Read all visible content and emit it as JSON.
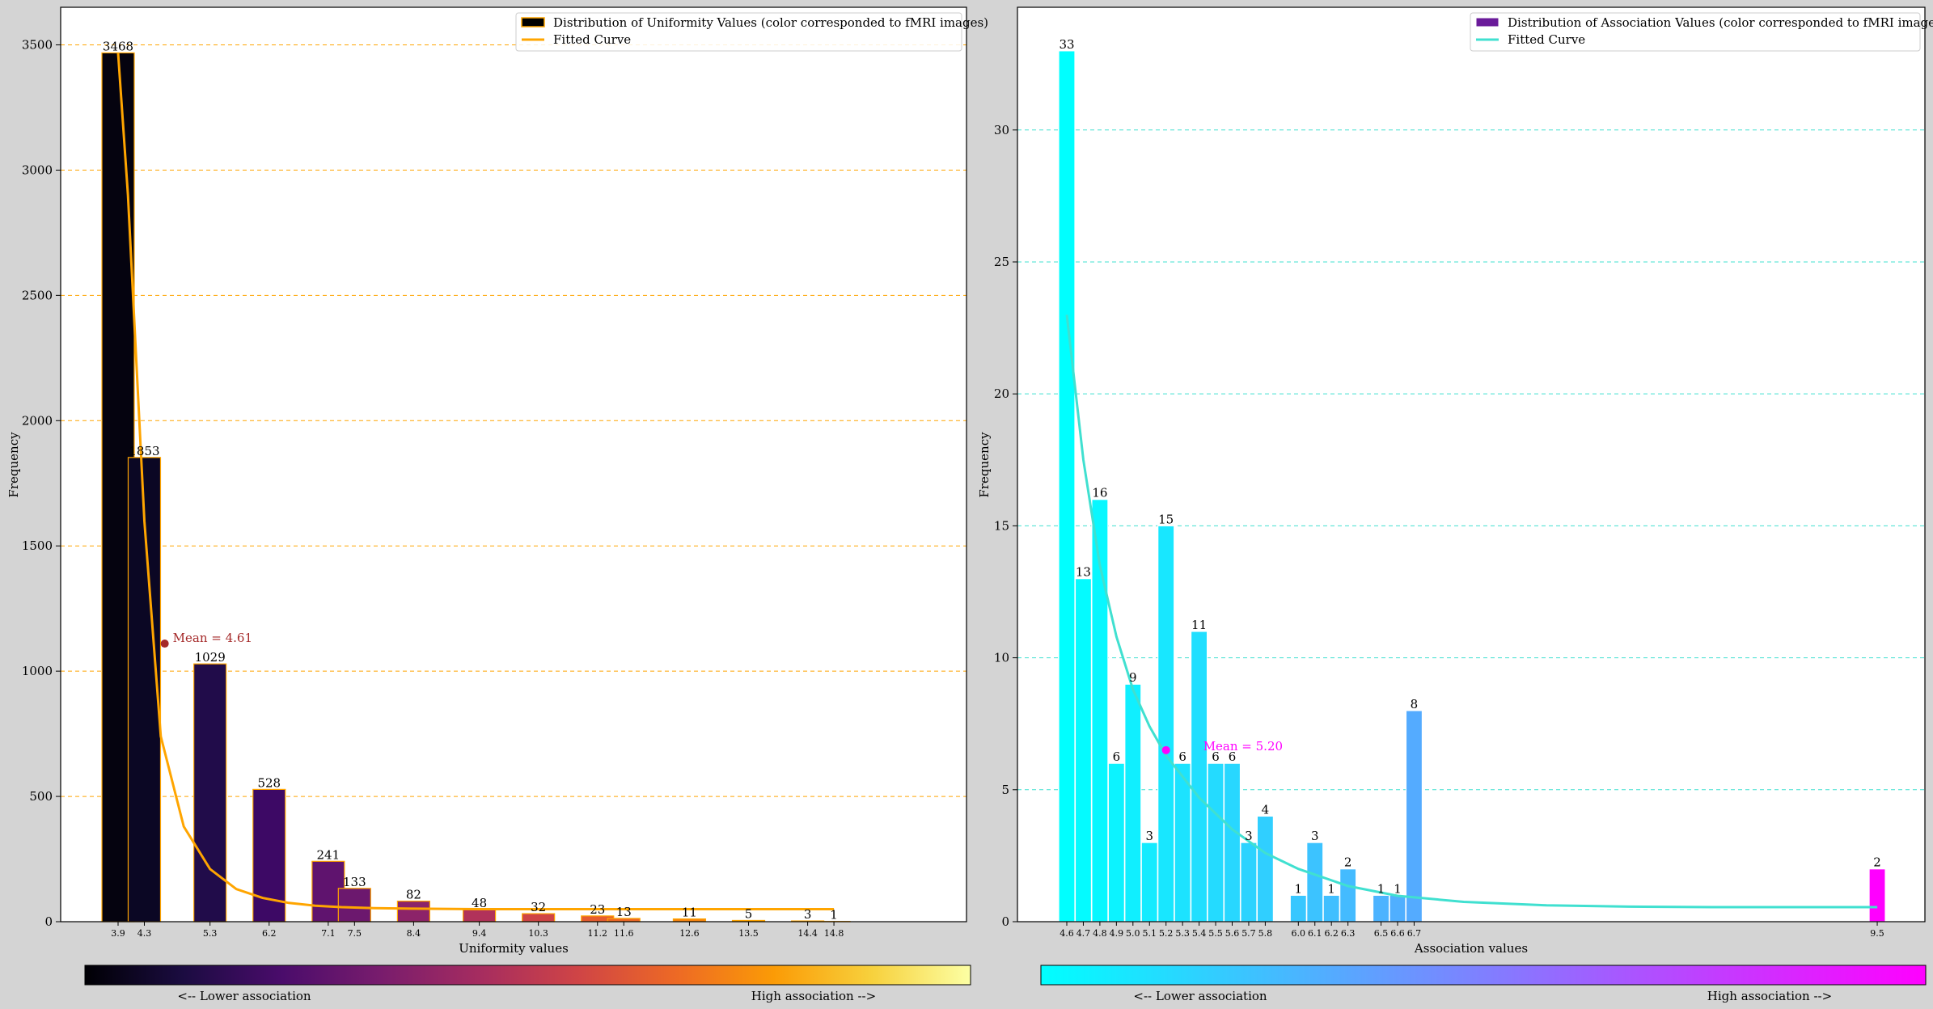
{
  "chart_data": [
    {
      "type": "bar",
      "xlabel": "Uniformity values",
      "ylabel": "Frequency",
      "ylim": [
        0,
        3650
      ],
      "yticks": [
        0,
        500,
        1000,
        1500,
        2000,
        2500,
        3000,
        3500
      ],
      "grid": "y, dashed",
      "grid_color": "#ffa500",
      "legend_position": "top-right",
      "legend": {
        "bars": "Distribution of Uniformity Values (color corresponded to fMRI images)",
        "curve": "Fitted Curve"
      },
      "bar_edge_color": "#ffa500",
      "curve_color": "#ffa500",
      "bars": [
        {
          "label": "3.9",
          "x": 3.9,
          "value": 3468,
          "color": "#05030f"
        },
        {
          "label": "4.3",
          "x": 4.3,
          "value": 1853,
          "color": "#0b0724"
        },
        {
          "label": "5.3",
          "x": 5.3,
          "value": 1029,
          "color": "#210c4a"
        },
        {
          "label": "6.2",
          "x": 6.2,
          "value": 528,
          "color": "#3d0965"
        },
        {
          "label": "7.1",
          "x": 7.1,
          "value": 241,
          "color": "#5f136e"
        },
        {
          "label": "7.5",
          "x": 7.5,
          "value": 133,
          "color": "#6c186e"
        },
        {
          "label": "8.4",
          "x": 8.4,
          "value": 82,
          "color": "#8c2369"
        },
        {
          "label": "9.4",
          "x": 9.4,
          "value": 48,
          "color": "#b1325a"
        },
        {
          "label": "10.3",
          "x": 10.3,
          "value": 32,
          "color": "#cf4446"
        },
        {
          "label": "11.2",
          "x": 11.2,
          "value": 23,
          "color": "#e55c30"
        },
        {
          "label": "11.6",
          "x": 11.6,
          "value": 13,
          "color": "#ec6726"
        },
        {
          "label": "12.6",
          "x": 12.6,
          "value": 11,
          "color": "#f8850f"
        },
        {
          "label": "13.5",
          "x": 13.5,
          "value": 5,
          "color": "#fca50a"
        },
        {
          "label": "14.4",
          "x": 14.4,
          "value": 3,
          "color": "#f7cb44"
        },
        {
          "label": "14.8",
          "x": 14.8,
          "value": 1,
          "color": "#f3e55d"
        }
      ],
      "curve": {
        "x": [
          3.9,
          4.05,
          4.3,
          4.55,
          4.9,
          5.3,
          5.7,
          6.1,
          6.5,
          6.9,
          7.3,
          7.8,
          8.4,
          9.4,
          10.3,
          11.2,
          12.6,
          13.5,
          14.4,
          14.8
        ],
        "y": [
          3468,
          2900,
          1600,
          740,
          380,
          210,
          130,
          95,
          75,
          64,
          58,
          54,
          52,
          50,
          50,
          50,
          50,
          50,
          50,
          50
        ]
      },
      "mean": {
        "label": "Mean = 4.61",
        "x": 4.61,
        "y": 1110,
        "color": "#a52a2a"
      },
      "colorbar": {
        "colors": [
          "#000004",
          "#1b0c41",
          "#4a0c6b",
          "#781c6d",
          "#a52c60",
          "#cf4446",
          "#ed6925",
          "#fb9b06",
          "#f7d13d",
          "#fcffa4"
        ],
        "left_label": "<-- Lower association",
        "right_label": "High association -->"
      }
    },
    {
      "type": "bar",
      "xlabel": "Association values",
      "ylabel": "Frequency",
      "ylim": [
        0,
        34.65
      ],
      "yticks": [
        0,
        5,
        10,
        15,
        20,
        25,
        30
      ],
      "grid": "y, dashed",
      "grid_color": "#40e0d0",
      "legend_position": "top-right",
      "legend": {
        "bars": "Distribution of Association Values (color corresponded to fMRI images)",
        "curve": "Fitted Curve"
      },
      "legend_swatch_color": "#6a1b9a",
      "bar_edge_color": "#ffffff",
      "curve_color": "#40e0d0",
      "bars": [
        {
          "label": "4.6",
          "x": 4.6,
          "value": 33,
          "color": "#00ffff"
        },
        {
          "label": "4.7",
          "x": 4.7,
          "value": 13,
          "color": "#04fbff"
        },
        {
          "label": "4.8",
          "x": 4.8,
          "value": 16,
          "color": "#08f7ff"
        },
        {
          "label": "4.9",
          "x": 4.9,
          "value": 6,
          "color": "#0cf3ff"
        },
        {
          "label": "5.0",
          "x": 5.0,
          "value": 9,
          "color": "#10efff"
        },
        {
          "label": "5.1",
          "x": 5.1,
          "value": 3,
          "color": "#14ebff"
        },
        {
          "label": "5.2",
          "x": 5.2,
          "value": 15,
          "color": "#18e7ff"
        },
        {
          "label": "5.3",
          "x": 5.3,
          "value": 6,
          "color": "#1ce3ff"
        },
        {
          "label": "5.4",
          "x": 5.4,
          "value": 11,
          "color": "#20dfff"
        },
        {
          "label": "5.5",
          "x": 5.5,
          "value": 6,
          "color": "#24dbff"
        },
        {
          "label": "5.6",
          "x": 5.6,
          "value": 6,
          "color": "#28d7ff"
        },
        {
          "label": "5.7",
          "x": 5.7,
          "value": 3,
          "color": "#2cd3ff"
        },
        {
          "label": "5.8",
          "x": 5.8,
          "value": 4,
          "color": "#30cfff"
        },
        {
          "label": "6.0",
          "x": 6.0,
          "value": 1,
          "color": "#38c7ff"
        },
        {
          "label": "6.1",
          "x": 6.1,
          "value": 3,
          "color": "#3cc3ff"
        },
        {
          "label": "6.2",
          "x": 6.2,
          "value": 1,
          "color": "#40bfff"
        },
        {
          "label": "6.3",
          "x": 6.3,
          "value": 2,
          "color": "#44bbff"
        },
        {
          "label": "6.5",
          "x": 6.5,
          "value": 1,
          "color": "#4cb3ff"
        },
        {
          "label": "6.6",
          "x": 6.6,
          "value": 1,
          "color": "#50afff"
        },
        {
          "label": "6.7",
          "x": 6.7,
          "value": 8,
          "color": "#54abff"
        },
        {
          "label": "9.5",
          "x": 9.5,
          "value": 2,
          "color": "#ff00ff"
        }
      ],
      "curve": {
        "x": [
          4.6,
          4.7,
          4.8,
          4.9,
          5.0,
          5.1,
          5.2,
          5.4,
          5.6,
          5.8,
          6.0,
          6.3,
          6.6,
          7.0,
          7.5,
          8.0,
          8.5,
          9.0,
          9.5
        ],
        "y": [
          23,
          17.5,
          13.5,
          10.8,
          8.8,
          7.4,
          6.3,
          4.7,
          3.5,
          2.6,
          2.0,
          1.35,
          0.98,
          0.75,
          0.62,
          0.57,
          0.55,
          0.55,
          0.55
        ]
      },
      "mean": {
        "label": "Mean = 5.20",
        "x": 5.2,
        "y": 6.5,
        "color": "#ff00ff"
      },
      "colorbar": {
        "colors": [
          "#00ffff",
          "#ff00ff"
        ],
        "left_label": "<-- Lower association",
        "right_label": "High association -->"
      }
    }
  ]
}
